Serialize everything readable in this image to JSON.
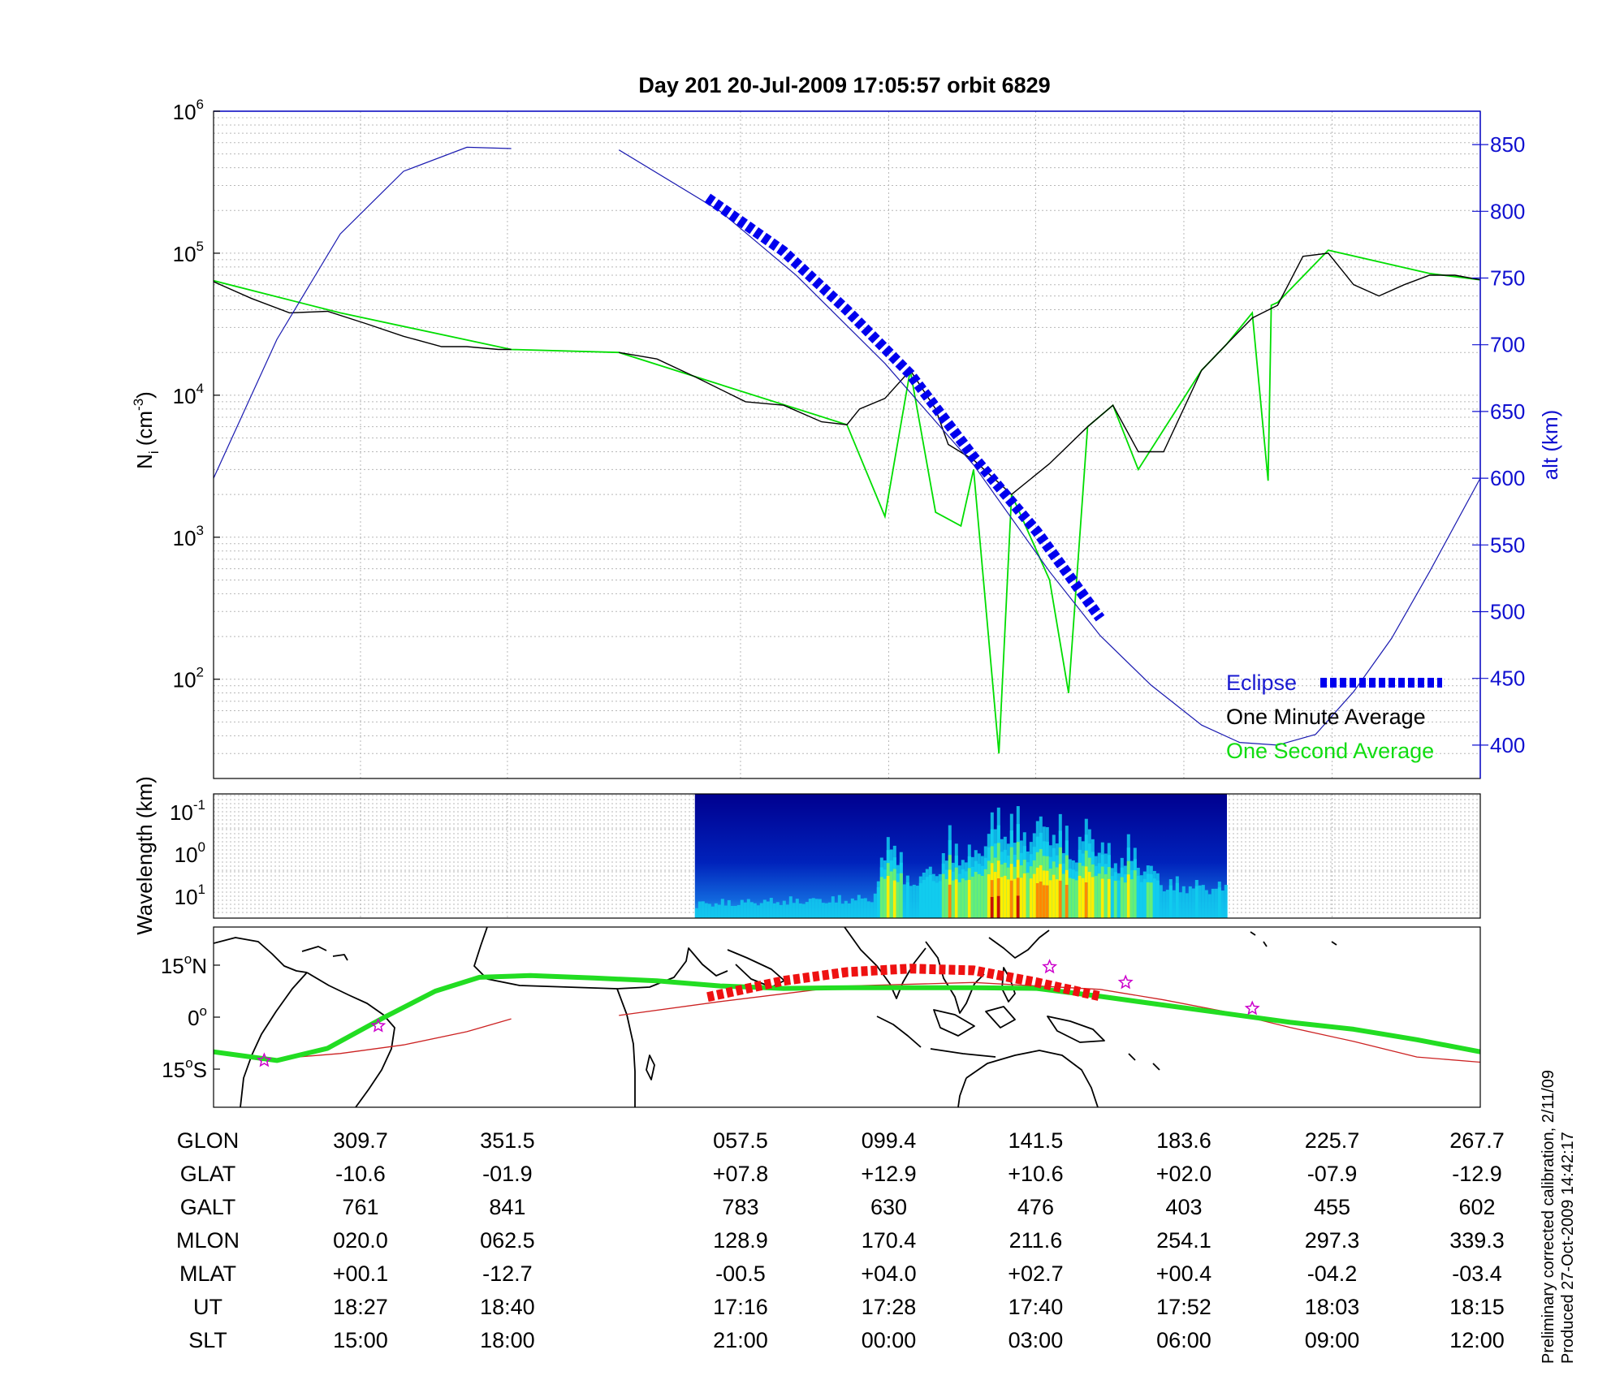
{
  "title": "Day 201  20-Jul-2009 17:05:57   orbit 6829",
  "chart_data": [
    {
      "panel": "density",
      "type": "line",
      "ylabel_left_base": "N",
      "ylabel_left_sub": "i",
      "ylabel_left_unit_open": "(cm",
      "ylabel_left_unit_exp": "-3",
      "ylabel_left_unit_close": ")",
      "ylabel_right": "alt (km)",
      "ylim_left": [
        20,
        1000000
      ],
      "yscale_left": "log",
      "yticks_left": [
        {
          "base": "10",
          "exp": "6",
          "value": 1000000
        },
        {
          "base": "10",
          "exp": "5",
          "value": 100000
        },
        {
          "base": "10",
          "exp": "4",
          "value": 10000
        },
        {
          "base": "10",
          "exp": "3",
          "value": 1000
        },
        {
          "base": "10",
          "exp": "2",
          "value": 100
        }
      ],
      "ylim_right": [
        375,
        875
      ],
      "yticks_right": [
        "850",
        "800",
        "750",
        "700",
        "650",
        "600",
        "550",
        "500",
        "450",
        "400"
      ],
      "x_range": [
        0,
        1
      ],
      "grid": true,
      "legend_placement": "bottom-right",
      "legend": {
        "eclipse": "Eclipse",
        "one_minute": "One Minute Average",
        "one_second": "One Second Average"
      },
      "colors": {
        "altitude": "#1a1ab0",
        "eclipse": "#0000ee",
        "one_minute": "#000000",
        "one_second": "#00dd00",
        "right_axis": "#1010d0"
      },
      "series": [
        {
          "name": "Altitude",
          "axis": "right",
          "segments": [
            {
              "x": [
                0.0,
                0.05,
                0.1,
                0.15,
                0.2,
                0.235
              ],
              "y": [
                600,
                704,
                783,
                830,
                848,
                847
              ]
            },
            {
              "x": [
                0.32,
                0.4,
                0.46,
                0.53,
                0.6,
                0.66,
                0.7,
                0.74,
                0.78,
                0.81,
                0.84,
                0.87,
                0.9,
                0.93,
                0.96,
                1.0
              ],
              "y": [
                846,
                800,
                752,
                686,
                610,
                530,
                482,
                445,
                415,
                402,
                400,
                408,
                440,
                480,
                530,
                600
              ]
            }
          ]
        },
        {
          "name": "Eclipse",
          "axis": "right",
          "x": [
            0.39,
            0.45,
            0.5,
            0.55,
            0.6,
            0.65,
            0.7
          ],
          "y": [
            810,
            770,
            726,
            678,
            616,
            560,
            495
          ]
        },
        {
          "name": "One Minute Average",
          "axis": "left",
          "segments": [
            {
              "x": [
                0.0,
                0.03,
                0.06,
                0.09,
                0.12,
                0.15,
                0.18,
                0.2,
                0.225,
                0.235
              ],
              "y": [
                63000,
                48000,
                38000,
                39000,
                32000,
                26000,
                22000,
                22000,
                21000,
                21000
              ]
            },
            {
              "x": [
                0.32,
                0.35,
                0.38,
                0.42,
                0.45,
                0.48,
                0.5,
                0.51,
                0.53,
                0.55,
                0.57,
                0.58,
                0.6,
                0.63,
                0.66,
                0.69,
                0.71,
                0.73,
                0.75,
                0.78,
                0.8,
                0.82,
                0.84,
                0.86,
                0.88,
                0.9,
                0.92,
                0.94,
                0.96,
                0.98,
                1.0
              ],
              "y": [
                20000,
                18000,
                13500,
                9000,
                8500,
                6500,
                6200,
                8000,
                9500,
                15000,
                8000,
                4500,
                3500,
                2000,
                3300,
                6000,
                8500,
                4000,
                4000,
                15000,
                23000,
                35000,
                43000,
                95000,
                100000,
                60000,
                50000,
                60000,
                70000,
                70000,
                65000
              ]
            }
          ]
        },
        {
          "name": "One Second Average",
          "axis": "left",
          "x": [
            0.0,
            0.1,
            0.235,
            0.32,
            0.5,
            0.53,
            0.55,
            0.57,
            0.59,
            0.6,
            0.62,
            0.63,
            0.66,
            0.675,
            0.69,
            0.71,
            0.73,
            0.78,
            0.8,
            0.82,
            0.8325,
            0.835,
            0.84,
            0.88,
            0.96,
            1.0
          ],
          "y": [
            64000,
            38000,
            21000,
            20000,
            6200,
            1400,
            15000,
            1500,
            1200,
            3000,
            30,
            2000,
            500,
            80,
            6000,
            8500,
            3000,
            15000,
            23000,
            38000,
            2500,
            43000,
            45000,
            105000,
            72000,
            65000
          ]
        }
      ]
    },
    {
      "panel": "spectrogram",
      "type": "heatmap",
      "ylabel": "Wavelength (km)",
      "yticks": [
        {
          "base": "10",
          "exp": "-1"
        },
        {
          "base": "10",
          "exp": "0"
        },
        {
          "base": "10",
          "exp": "1"
        }
      ],
      "data_x_range": [
        0.38,
        0.8
      ],
      "intensity_profile": [
        {
          "x": 0.38,
          "level": 0.15
        },
        {
          "x": 0.52,
          "level": 0.2
        },
        {
          "x": 0.535,
          "level": 0.95
        },
        {
          "x": 0.545,
          "level": 0.35
        },
        {
          "x": 0.57,
          "level": 0.5
        },
        {
          "x": 0.58,
          "level": 0.75
        },
        {
          "x": 0.6,
          "level": 0.6
        },
        {
          "x": 0.61,
          "level": 0.9
        },
        {
          "x": 0.625,
          "level": 1.0
        },
        {
          "x": 0.64,
          "level": 0.85
        },
        {
          "x": 0.66,
          "level": 0.95
        },
        {
          "x": 0.68,
          "level": 0.7
        },
        {
          "x": 0.69,
          "level": 0.9
        },
        {
          "x": 0.71,
          "level": 0.55
        },
        {
          "x": 0.72,
          "level": 0.7
        },
        {
          "x": 0.75,
          "level": 0.35
        },
        {
          "x": 0.8,
          "level": 0.3
        }
      ]
    },
    {
      "panel": "map",
      "type": "line",
      "yticks": [
        {
          "value": "15",
          "unit": "o",
          "hemi": "N"
        },
        {
          "value": "0",
          "unit": "o",
          "hemi": ""
        },
        {
          "value": "15",
          "unit": "o",
          "hemi": "S"
        }
      ],
      "ylim": [
        -26,
        26
      ],
      "colors": {
        "track": "#22dd22",
        "magnetic": "#cc2222",
        "eclipse": "#ee1111",
        "stars": "#cc00cc",
        "coast": "#000000"
      },
      "series": [
        {
          "name": "Ground track",
          "x": [
            0.0,
            0.05,
            0.09,
            0.135,
            0.175,
            0.21,
            0.25,
            0.3,
            0.35,
            0.4,
            0.45,
            0.5,
            0.55,
            0.6,
            0.65,
            0.7,
            0.75,
            0.8,
            0.85,
            0.9,
            0.95,
            1.0
          ],
          "y": [
            -10,
            -12.5,
            -9,
            0,
            7.5,
            11.5,
            12,
            11.3,
            10.5,
            9,
            8.3,
            8.5,
            8.5,
            8.5,
            8.3,
            6,
            3.5,
            1,
            -1.5,
            -3.5,
            -6.5,
            -10
          ]
        },
        {
          "name": "Magnetic equator",
          "segments": [
            {
              "x": [
                0.05,
                0.1,
                0.15,
                0.2,
                0.235
              ],
              "y": [
                -12,
                -10.5,
                -8,
                -4.2,
                -0.5
              ]
            },
            {
              "x": [
                0.32,
                0.4,
                0.5,
                0.6,
                0.7,
                0.75,
                0.8,
                0.85,
                0.9,
                0.95,
                1.0
              ],
              "y": [
                0.5,
                4.5,
                9,
                10,
                8,
                5,
                1.5,
                -3,
                -7,
                -11.5,
                -13
              ]
            }
          ]
        },
        {
          "name": "Eclipse",
          "x": [
            0.39,
            0.45,
            0.5,
            0.55,
            0.6,
            0.65,
            0.7
          ],
          "y": [
            5.8,
            10.5,
            13,
            14,
            13.5,
            10,
            6
          ]
        },
        {
          "name": "Stars",
          "x": [
            0.04,
            0.13,
            0.66,
            0.72,
            0.82
          ],
          "y": [
            -12.5,
            -2.5,
            14.5,
            10,
            2.5
          ]
        }
      ]
    }
  ],
  "table": {
    "columns_x": [
      0.116,
      0.232,
      0.416,
      0.533,
      0.649,
      0.766,
      0.883,
      1.0
    ],
    "gap_after_index": 1,
    "rows": [
      {
        "label": "GLON",
        "values": [
          "309.7",
          "351.5",
          "057.5",
          "099.4",
          "141.5",
          "183.6",
          "225.7",
          "267.7"
        ]
      },
      {
        "label": "GLAT",
        "values": [
          "-10.6",
          "-01.9",
          "+07.8",
          "+12.9",
          "+10.6",
          "+02.0",
          "-07.9",
          "-12.9"
        ]
      },
      {
        "label": "GALT",
        "values": [
          "761",
          "841",
          "783",
          "630",
          "476",
          "403",
          "455",
          "602"
        ]
      },
      {
        "label": "MLON",
        "values": [
          "020.0",
          "062.5",
          "128.9",
          "170.4",
          "211.6",
          "254.1",
          "297.3",
          "339.3"
        ]
      },
      {
        "label": "MLAT",
        "values": [
          "+00.1",
          "-12.7",
          "-00.5",
          "+04.0",
          "+02.7",
          "+00.4",
          "-04.2",
          "-03.4"
        ]
      },
      {
        "label": "UT",
        "values": [
          "18:27",
          "18:40",
          "17:16",
          "17:28",
          "17:40",
          "17:52",
          "18:03",
          "18:15"
        ]
      },
      {
        "label": "SLT",
        "values": [
          "15:00",
          "18:00",
          "21:00",
          "00:00",
          "03:00",
          "06:00",
          "09:00",
          "12:00"
        ]
      }
    ]
  },
  "notes": {
    "line1": "Preliminary corrected calibration, 2/11/09",
    "line2": "Produced 27-Oct-2009 14:42:17"
  }
}
